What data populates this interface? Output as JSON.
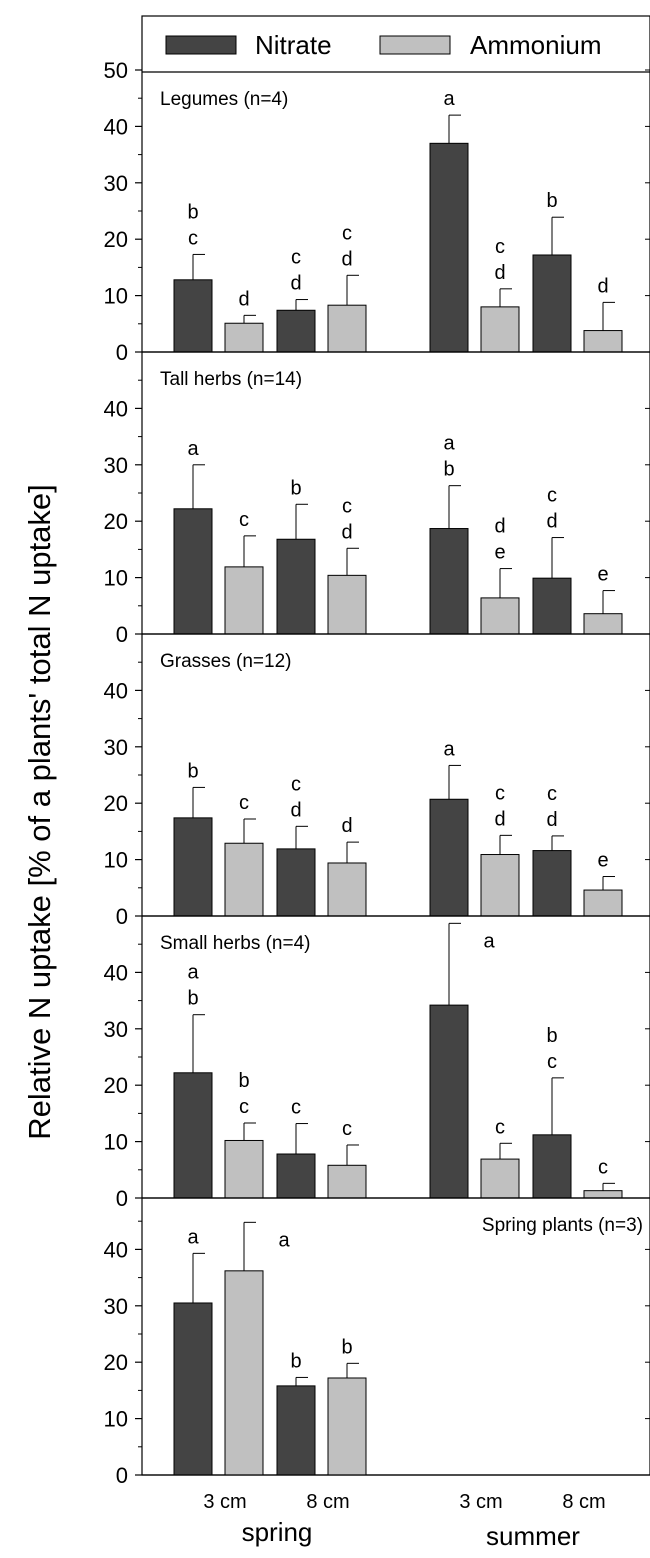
{
  "chart_data": {
    "type": "bar",
    "ylabel": "Relative N uptake [% of a plants' total N uptake]",
    "legend": {
      "placement": "top",
      "entries": [
        {
          "name": "Nitrate",
          "color": "#444444"
        },
        {
          "name": "Ammonium",
          "color": "#c0c0c0"
        }
      ]
    },
    "x_categories": [
      "3 cm",
      "8 cm",
      "3 cm",
      "8 cm"
    ],
    "season_labels": [
      "spring",
      "summer"
    ],
    "ylim": [
      0,
      50
    ],
    "panels": [
      {
        "title": "Legumes (n=4)",
        "yticks": [
          "0",
          "10",
          "20",
          "30",
          "40",
          "50"
        ],
        "bars": [
          {
            "season": "spring",
            "depth": "3 cm",
            "series": "Nitrate",
            "value": 12.8,
            "error": 4.5,
            "letters": [
              "b",
              "c"
            ]
          },
          {
            "season": "spring",
            "depth": "3 cm",
            "series": "Ammonium",
            "value": 5.1,
            "error": 1.4,
            "letters": [
              "d"
            ]
          },
          {
            "season": "spring",
            "depth": "8 cm",
            "series": "Nitrate",
            "value": 7.4,
            "error": 1.9,
            "letters": [
              "c",
              "d"
            ]
          },
          {
            "season": "spring",
            "depth": "8 cm",
            "series": "Ammonium",
            "value": 8.3,
            "error": 5.3,
            "letters": [
              "c",
              "d"
            ]
          },
          {
            "season": "summer",
            "depth": "3 cm",
            "series": "Nitrate",
            "value": 37.0,
            "error": 5.0,
            "letters": [
              "a"
            ]
          },
          {
            "season": "summer",
            "depth": "3 cm",
            "series": "Ammonium",
            "value": 8.0,
            "error": 3.2,
            "letters": [
              "c",
              "d"
            ]
          },
          {
            "season": "summer",
            "depth": "8 cm",
            "series": "Nitrate",
            "value": 17.2,
            "error": 6.7,
            "letters": [
              "b"
            ]
          },
          {
            "season": "summer",
            "depth": "8 cm",
            "series": "Ammonium",
            "value": 3.8,
            "error": 5.0,
            "letters": [
              "d"
            ]
          }
        ]
      },
      {
        "title": "Tall herbs (n=14)",
        "yticks": [
          "0",
          "10",
          "20",
          "30",
          "40"
        ],
        "bars": [
          {
            "season": "spring",
            "depth": "3 cm",
            "series": "Nitrate",
            "value": 22.2,
            "error": 7.8,
            "letters": [
              "a"
            ]
          },
          {
            "season": "spring",
            "depth": "3 cm",
            "series": "Ammonium",
            "value": 11.9,
            "error": 5.5,
            "letters": [
              "c"
            ]
          },
          {
            "season": "spring",
            "depth": "8 cm",
            "series": "Nitrate",
            "value": 16.8,
            "error": 6.2,
            "letters": [
              "b"
            ]
          },
          {
            "season": "spring",
            "depth": "8 cm",
            "series": "Ammonium",
            "value": 10.4,
            "error": 4.8,
            "letters": [
              "c",
              "d"
            ]
          },
          {
            "season": "summer",
            "depth": "3 cm",
            "series": "Nitrate",
            "value": 18.7,
            "error": 7.6,
            "letters": [
              "a",
              "b"
            ]
          },
          {
            "season": "summer",
            "depth": "3 cm",
            "series": "Ammonium",
            "value": 6.4,
            "error": 5.2,
            "letters": [
              "d",
              "e"
            ]
          },
          {
            "season": "summer",
            "depth": "8 cm",
            "series": "Nitrate",
            "value": 9.9,
            "error": 7.2,
            "letters": [
              "c",
              "d"
            ]
          },
          {
            "season": "summer",
            "depth": "8 cm",
            "series": "Ammonium",
            "value": 3.6,
            "error": 4.1,
            "letters": [
              "e"
            ]
          }
        ]
      },
      {
        "title": "Grasses (n=12)",
        "yticks": [
          "0",
          "10",
          "20",
          "30",
          "40"
        ],
        "bars": [
          {
            "season": "spring",
            "depth": "3 cm",
            "series": "Nitrate",
            "value": 17.4,
            "error": 5.4,
            "letters": [
              "b"
            ]
          },
          {
            "season": "spring",
            "depth": "3 cm",
            "series": "Ammonium",
            "value": 12.9,
            "error": 4.3,
            "letters": [
              "c"
            ]
          },
          {
            "season": "spring",
            "depth": "8 cm",
            "series": "Nitrate",
            "value": 11.9,
            "error": 4.0,
            "letters": [
              "c",
              "d"
            ]
          },
          {
            "season": "spring",
            "depth": "8 cm",
            "series": "Ammonium",
            "value": 9.4,
            "error": 3.7,
            "letters": [
              "d"
            ]
          },
          {
            "season": "summer",
            "depth": "3 cm",
            "series": "Nitrate",
            "value": 20.7,
            "error": 6.0,
            "letters": [
              "a"
            ]
          },
          {
            "season": "summer",
            "depth": "3 cm",
            "series": "Ammonium",
            "value": 10.9,
            "error": 3.4,
            "letters": [
              "c",
              "d"
            ]
          },
          {
            "season": "summer",
            "depth": "8 cm",
            "series": "Nitrate",
            "value": 11.6,
            "error": 2.6,
            "letters": [
              "c",
              "d"
            ]
          },
          {
            "season": "summer",
            "depth": "8 cm",
            "series": "Ammonium",
            "value": 4.6,
            "error": 2.4,
            "letters": [
              "e"
            ]
          }
        ]
      },
      {
        "title": "Small herbs (n=4)",
        "yticks": [
          "0",
          "10",
          "20",
          "30",
          "40"
        ],
        "bars": [
          {
            "season": "spring",
            "depth": "3 cm",
            "series": "Nitrate",
            "value": 22.2,
            "error": 10.3,
            "letters": [
              "a",
              "b"
            ]
          },
          {
            "season": "spring",
            "depth": "3 cm",
            "series": "Ammonium",
            "value": 10.2,
            "error": 3.1,
            "letters": [
              "b",
              "c"
            ]
          },
          {
            "season": "spring",
            "depth": "8 cm",
            "series": "Nitrate",
            "value": 7.8,
            "error": 5.4,
            "letters": [
              "c"
            ]
          },
          {
            "season": "spring",
            "depth": "8 cm",
            "series": "Ammonium",
            "value": 5.8,
            "error": 3.6,
            "letters": [
              "c"
            ]
          },
          {
            "season": "summer",
            "depth": "3 cm",
            "series": "Nitrate",
            "value": 34.2,
            "error": 14.5,
            "letters": [
              "a"
            ]
          },
          {
            "season": "summer",
            "depth": "3 cm",
            "series": "Ammonium",
            "value": 6.9,
            "error": 2.8,
            "letters": [
              "c"
            ]
          },
          {
            "season": "summer",
            "depth": "8 cm",
            "series": "Nitrate",
            "value": 11.2,
            "error": 10.1,
            "letters": [
              "b",
              "c"
            ]
          },
          {
            "season": "summer",
            "depth": "8 cm",
            "series": "Ammonium",
            "value": 1.3,
            "error": 1.3,
            "letters": [
              "c"
            ]
          }
        ]
      },
      {
        "title": "Spring plants (n=3)",
        "yticks": [
          "0",
          "10",
          "20",
          "30",
          "40"
        ],
        "bars": [
          {
            "season": "spring",
            "depth": "3 cm",
            "series": "Nitrate",
            "value": 30.5,
            "error": 8.8,
            "letters": [
              "a"
            ]
          },
          {
            "season": "spring",
            "depth": "3 cm",
            "series": "Ammonium",
            "value": 36.2,
            "error": 8.6,
            "letters": [
              "a"
            ]
          },
          {
            "season": "spring",
            "depth": "8 cm",
            "series": "Nitrate",
            "value": 15.8,
            "error": 1.5,
            "letters": [
              "b"
            ]
          },
          {
            "season": "spring",
            "depth": "8 cm",
            "series": "Ammonium",
            "value": 17.2,
            "error": 2.6,
            "letters": [
              "b"
            ]
          }
        ]
      }
    ]
  }
}
